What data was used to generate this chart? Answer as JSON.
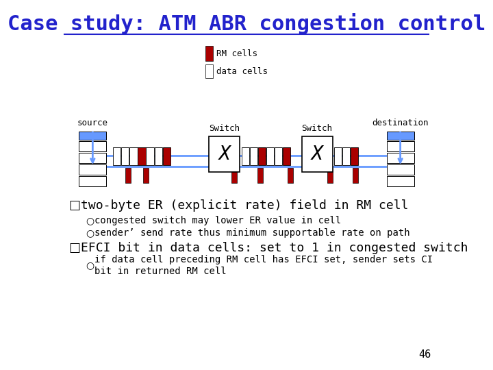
{
  "title": "Case study: ATM ABR congestion control",
  "title_color": "#2222CC",
  "title_fontsize": 22,
  "bg_color": "#FFFFFF",
  "bullet1": "two-byte ER (explicit rate) field in RM cell",
  "sub1a": "congested switch may lower ER value in cell",
  "sub1b": "sender’ send rate thus minimum supportable rate on path",
  "bullet2": "EFCI bit in data cells: set to 1 in congested switch",
  "sub2a_line1": "if data cell preceding RM cell has EFCI set, sender sets CI",
  "sub2a_line2": "bit in returned RM cell",
  "page_num": "46",
  "rm_cell_color": "#AA0000",
  "wire_color": "#6699FF",
  "switch_label": "Switch",
  "legend_rm": "RM cells",
  "legend_data": "data cells",
  "source_label": "source",
  "dest_label": "destination"
}
